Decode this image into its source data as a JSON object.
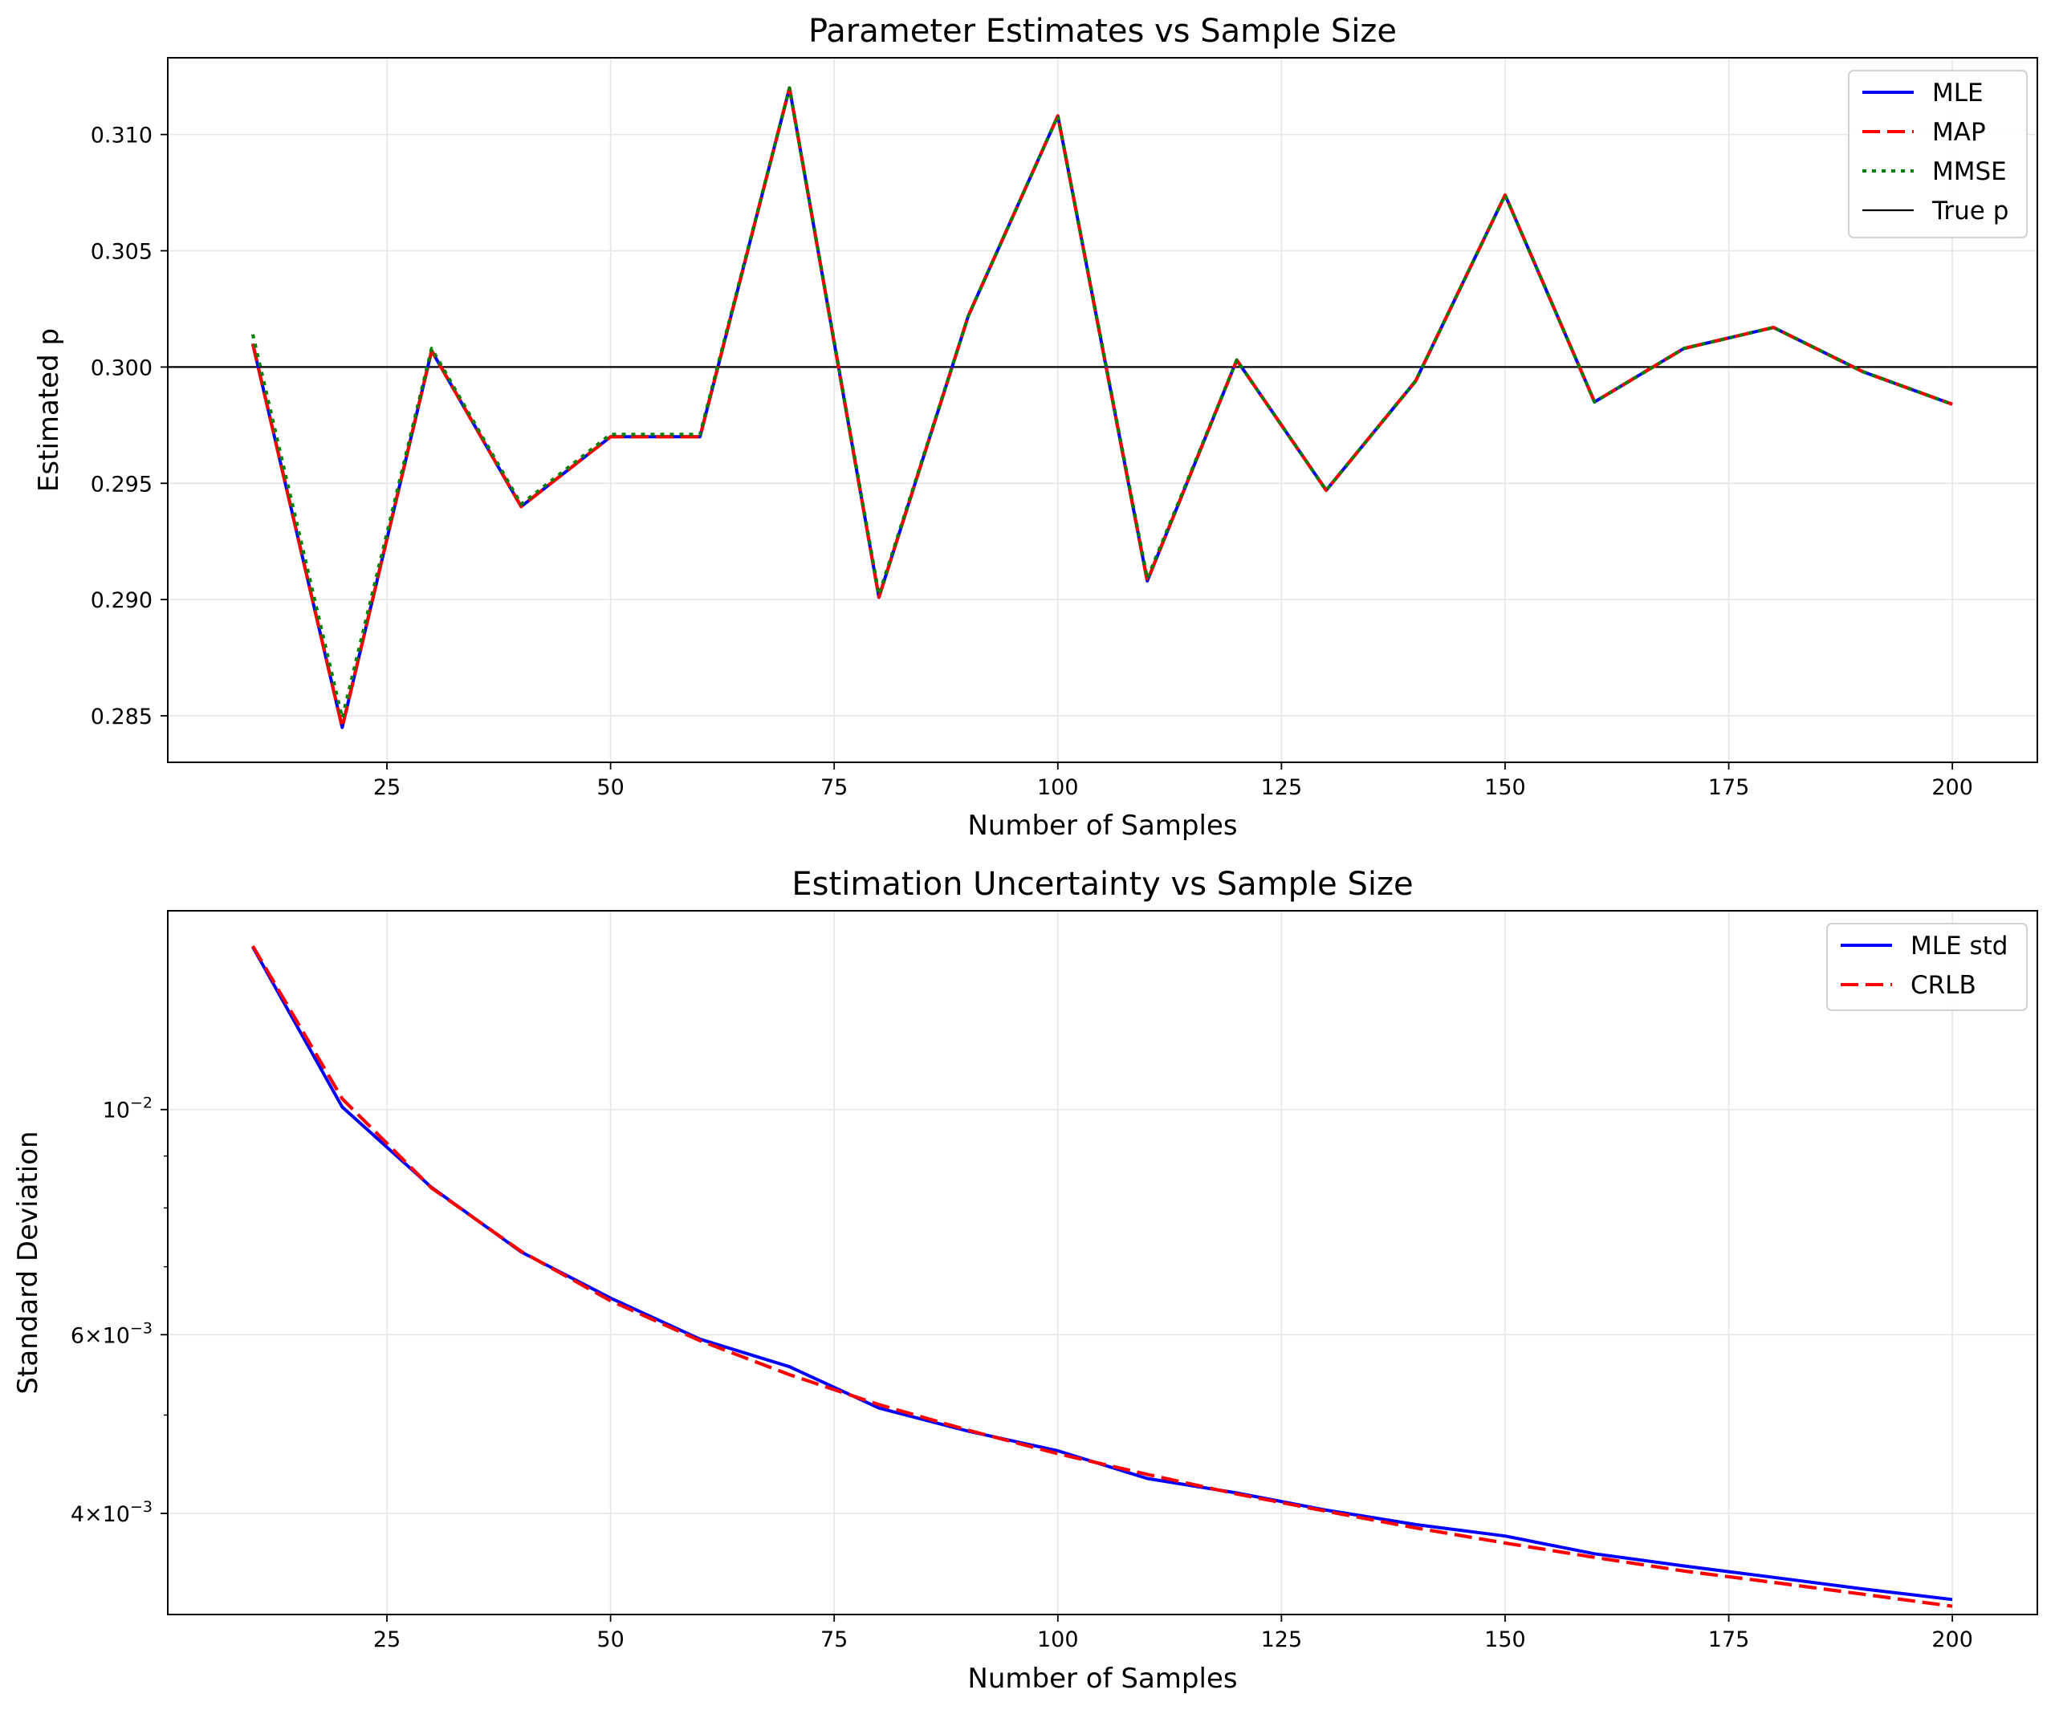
{
  "chart_data": [
    {
      "type": "line",
      "title": "Parameter Estimates vs Sample Size",
      "xlabel": "Number of Samples",
      "ylabel": "Estimated p",
      "xlim": [
        0.5,
        209.5
      ],
      "ylim": [
        0.283,
        0.3133
      ],
      "x_ticks": [
        25,
        50,
        75,
        100,
        125,
        150,
        175,
        200
      ],
      "y_ticks": [
        0.285,
        0.29,
        0.295,
        0.3,
        0.305,
        0.31
      ],
      "y_tick_labels": [
        "0.285",
        "0.290",
        "0.295",
        "0.300",
        "0.305",
        "0.310"
      ],
      "y_scale": "linear",
      "grid": true,
      "legend_position": "upper right",
      "x": [
        10,
        20,
        30,
        40,
        50,
        60,
        70,
        80,
        90,
        100,
        110,
        120,
        130,
        140,
        150,
        160,
        170,
        180,
        190,
        200
      ],
      "series": [
        {
          "name": "MLE",
          "color": "#0000ff",
          "style": "solid",
          "values": [
            0.301,
            0.2845,
            0.3007,
            0.294,
            0.297,
            0.297,
            0.312,
            0.2901,
            0.3022,
            0.3108,
            0.2908,
            0.3003,
            0.2947,
            0.2994,
            0.3074,
            0.2985,
            0.3008,
            0.3017,
            0.2998,
            0.2984
          ]
        },
        {
          "name": "MAP",
          "color": "#ff0000",
          "style": "dashed",
          "values": [
            0.301,
            0.2845,
            0.3007,
            0.294,
            0.297,
            0.297,
            0.312,
            0.2901,
            0.3022,
            0.3108,
            0.2908,
            0.3003,
            0.2947,
            0.2994,
            0.3074,
            0.2985,
            0.3008,
            0.3017,
            0.2998,
            0.2984
          ]
        },
        {
          "name": "MMSE",
          "color": "#008000",
          "style": "dotted",
          "values": [
            0.3014,
            0.2849,
            0.3008,
            0.2941,
            0.2971,
            0.2971,
            0.312,
            0.2902,
            0.3022,
            0.3108,
            0.2909,
            0.3003,
            0.2947,
            0.2994,
            0.3074,
            0.2985,
            0.3008,
            0.3017,
            0.2998,
            0.2984
          ]
        }
      ],
      "reference_line": {
        "name": "True p",
        "color": "#000000",
        "value": 0.3
      }
    },
    {
      "type": "line",
      "title": "Estimation Uncertainty vs Sample Size",
      "xlabel": "Number of Samples",
      "ylabel": "Standard Deviation",
      "xlim": [
        0.5,
        209.5
      ],
      "ylim": [
        0.00318,
        0.0157
      ],
      "x_ticks": [
        25,
        50,
        75,
        100,
        125,
        150,
        175,
        200
      ],
      "y_scale": "log",
      "y_major_ticks": [
        {
          "value": 0.01,
          "mantissa": "",
          "base": "10",
          "exponent": "−2"
        },
        {
          "value": 0.006,
          "mantissa": "6×",
          "base": "10",
          "exponent": "−3"
        },
        {
          "value": 0.004,
          "mantissa": "4×",
          "base": "10",
          "exponent": "−3"
        }
      ],
      "y_minor_ticks": [
        0.009,
        0.008,
        0.007,
        0.005
      ],
      "grid": true,
      "legend_position": "upper right",
      "x": [
        10,
        20,
        30,
        40,
        50,
        60,
        70,
        80,
        90,
        100,
        110,
        120,
        130,
        140,
        150,
        160,
        170,
        180,
        190,
        200
      ],
      "series": [
        {
          "name": "MLE std",
          "color": "#0000ff",
          "style": "solid",
          "values": [
            0.01446,
            0.01006,
            0.00838,
            0.00724,
            0.00652,
            0.00594,
            0.00558,
            0.00508,
            0.00482,
            0.00461,
            0.00433,
            0.00419,
            0.00403,
            0.0039,
            0.0038,
            0.00365,
            0.00355,
            0.00346,
            0.00337,
            0.00329
          ]
        },
        {
          "name": "CRLB",
          "color": "#ff0000",
          "style": "dashed",
          "values": [
            0.01449,
            0.01025,
            0.00837,
            0.00725,
            0.00648,
            0.00592,
            0.00548,
            0.00512,
            0.00483,
            0.00458,
            0.00437,
            0.00418,
            0.00402,
            0.00387,
            0.00374,
            0.00362,
            0.00351,
            0.00342,
            0.00333,
            0.00324
          ]
        }
      ]
    }
  ]
}
